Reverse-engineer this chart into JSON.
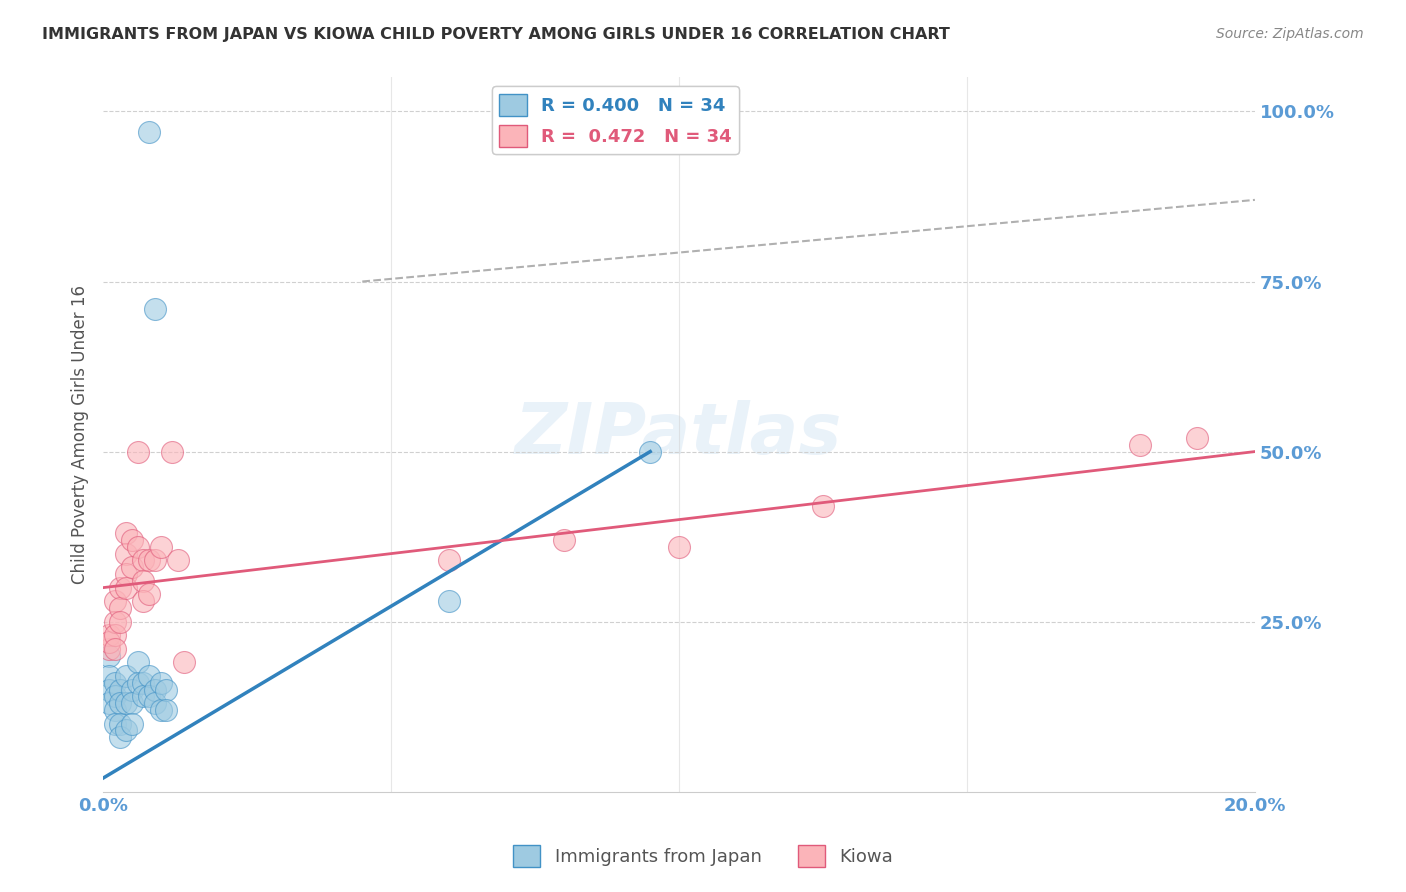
{
  "title": "IMMIGRANTS FROM JAPAN VS KIOWA CHILD POVERTY AMONG GIRLS UNDER 16 CORRELATION CHART",
  "source": "Source: ZipAtlas.com",
  "ylabel": "Child Poverty Among Girls Under 16",
  "r_blue": 0.4,
  "n_blue": 34,
  "r_pink": 0.472,
  "n_pink": 34,
  "legend_label_blue": "Immigrants from Japan",
  "legend_label_pink": "Kiowa",
  "watermark": "ZIPatlas",
  "blue_fill": "#9ecae1",
  "pink_fill": "#fbb4b9",
  "blue_edge": "#4292c6",
  "pink_edge": "#e05a7a",
  "blue_line": "#3182bd",
  "pink_line": "#e05a7a",
  "blue_scatter": [
    [
      0.001,
      0.2
    ],
    [
      0.001,
      0.17
    ],
    [
      0.001,
      0.15
    ],
    [
      0.001,
      0.13
    ],
    [
      0.002,
      0.16
    ],
    [
      0.002,
      0.14
    ],
    [
      0.002,
      0.12
    ],
    [
      0.002,
      0.1
    ],
    [
      0.003,
      0.15
    ],
    [
      0.003,
      0.13
    ],
    [
      0.003,
      0.1
    ],
    [
      0.003,
      0.08
    ],
    [
      0.004,
      0.17
    ],
    [
      0.004,
      0.13
    ],
    [
      0.004,
      0.09
    ],
    [
      0.005,
      0.15
    ],
    [
      0.005,
      0.13
    ],
    [
      0.005,
      0.1
    ],
    [
      0.006,
      0.19
    ],
    [
      0.006,
      0.16
    ],
    [
      0.007,
      0.16
    ],
    [
      0.007,
      0.14
    ],
    [
      0.008,
      0.17
    ],
    [
      0.008,
      0.14
    ],
    [
      0.009,
      0.15
    ],
    [
      0.009,
      0.13
    ],
    [
      0.01,
      0.16
    ],
    [
      0.01,
      0.12
    ],
    [
      0.011,
      0.15
    ],
    [
      0.011,
      0.12
    ],
    [
      0.008,
      0.97
    ],
    [
      0.009,
      0.71
    ],
    [
      0.06,
      0.28
    ],
    [
      0.095,
      0.5
    ]
  ],
  "pink_scatter": [
    [
      0.001,
      0.21
    ],
    [
      0.001,
      0.23
    ],
    [
      0.001,
      0.22
    ],
    [
      0.002,
      0.28
    ],
    [
      0.002,
      0.25
    ],
    [
      0.002,
      0.23
    ],
    [
      0.002,
      0.21
    ],
    [
      0.003,
      0.3
    ],
    [
      0.003,
      0.27
    ],
    [
      0.003,
      0.25
    ],
    [
      0.004,
      0.38
    ],
    [
      0.004,
      0.35
    ],
    [
      0.004,
      0.32
    ],
    [
      0.004,
      0.3
    ],
    [
      0.005,
      0.37
    ],
    [
      0.005,
      0.33
    ],
    [
      0.006,
      0.5
    ],
    [
      0.006,
      0.36
    ],
    [
      0.007,
      0.34
    ],
    [
      0.007,
      0.31
    ],
    [
      0.007,
      0.28
    ],
    [
      0.008,
      0.34
    ],
    [
      0.008,
      0.29
    ],
    [
      0.009,
      0.34
    ],
    [
      0.01,
      0.36
    ],
    [
      0.012,
      0.5
    ],
    [
      0.013,
      0.34
    ],
    [
      0.014,
      0.19
    ],
    [
      0.06,
      0.34
    ],
    [
      0.08,
      0.37
    ],
    [
      0.1,
      0.36
    ],
    [
      0.125,
      0.42
    ],
    [
      0.18,
      0.51
    ],
    [
      0.19,
      0.52
    ]
  ],
  "blue_line_pts": [
    [
      0.0,
      0.02
    ],
    [
      0.095,
      0.5
    ]
  ],
  "pink_line_pts": [
    [
      0.0,
      0.3
    ],
    [
      0.2,
      0.5
    ]
  ],
  "dash_line_pts": [
    [
      0.045,
      0.75
    ],
    [
      0.2,
      0.87
    ]
  ],
  "xlim": [
    0.0,
    0.2
  ],
  "ylim": [
    0.0,
    1.05
  ],
  "yticks": [
    0.0,
    0.25,
    0.5,
    0.75,
    1.0
  ],
  "ytick_labels": [
    "",
    "25.0%",
    "50.0%",
    "75.0%",
    "100.0%"
  ],
  "xtick_vals": [
    0.0,
    0.05,
    0.1,
    0.15,
    0.2
  ],
  "xtick_labels": [
    "0.0%",
    "",
    "",
    "",
    "20.0%"
  ],
  "background_color": "#ffffff",
  "grid_color": "#d0d0d0",
  "title_color": "#333333",
  "tick_color": "#5b9bd5"
}
